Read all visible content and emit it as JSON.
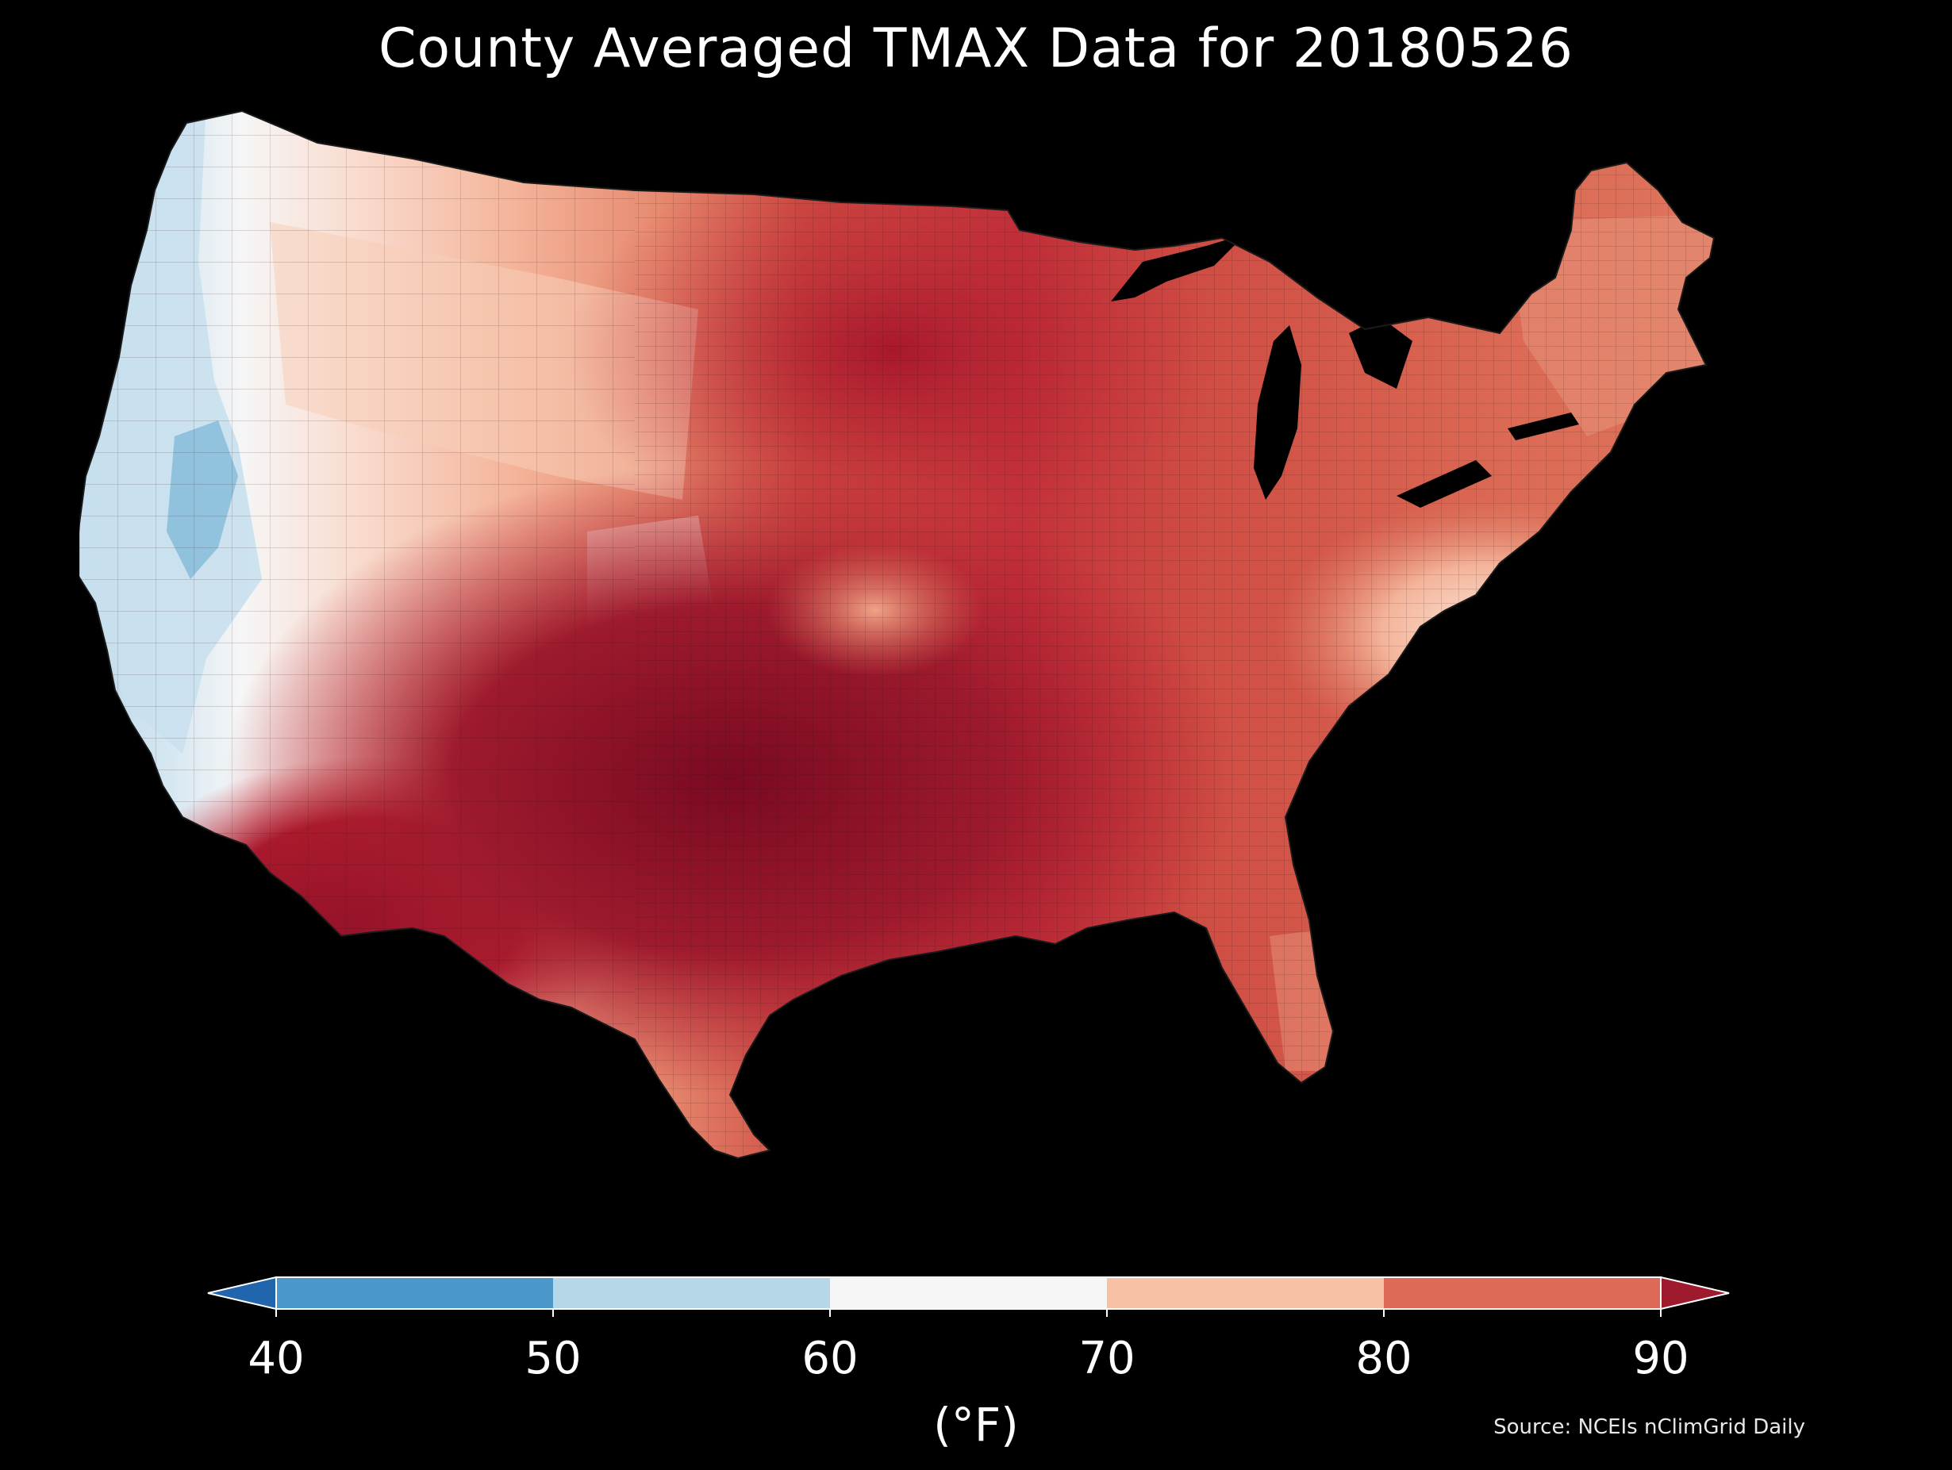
{
  "title": "County Averaged TMAX Data for 20180526",
  "colorbar": {
    "ticks": [
      "40",
      "50",
      "60",
      "70",
      "80",
      "90"
    ],
    "unit": "(°F)",
    "extend": "both",
    "bins": [
      {
        "from": 40,
        "to": 50,
        "color": "#4b97c9"
      },
      {
        "from": 50,
        "to": 60,
        "color": "#b6d7e8"
      },
      {
        "from": 60,
        "to": 70,
        "color": "#f6f6f6"
      },
      {
        "from": 70,
        "to": 80,
        "color": "#f7c1a6"
      },
      {
        "from": 80,
        "to": 90,
        "color": "#dd6a56"
      }
    ],
    "under_color": "#2166ac",
    "over_color": "#9e1a2d"
  },
  "source": "Source: NCEIs nClimGrid Daily",
  "map": {
    "region": "Contiguous United States counties",
    "background": "#000000",
    "regions": [
      {
        "name": "pacific-coast",
        "level": "50-60",
        "color": "#cfe3ef"
      },
      {
        "name": "central-valley-sierra",
        "level": "40-50",
        "color": "#92c5de"
      },
      {
        "name": "great-basin-north",
        "level": "60-70",
        "color": "#f5e3da"
      },
      {
        "name": "northern-rockies",
        "level": "70-80",
        "color": "#f4b49a"
      },
      {
        "name": "desert-southwest",
        "level": "90+",
        "color": "#9e1a2d"
      },
      {
        "name": "southern-plains",
        "level": "90+",
        "color": "#8b0e26"
      },
      {
        "name": "northern-plains",
        "level": "90+",
        "color": "#b71f30"
      },
      {
        "name": "midwest",
        "level": "80-90",
        "color": "#cf4d43"
      },
      {
        "name": "appalachians",
        "level": "70-80",
        "color": "#f1a887"
      },
      {
        "name": "southeast",
        "level": "80-90",
        "color": "#dc6b55"
      },
      {
        "name": "northeast",
        "level": "80-90",
        "color": "#e07c63"
      },
      {
        "name": "great-lakes",
        "level": "water",
        "color": "#000000"
      }
    ]
  }
}
